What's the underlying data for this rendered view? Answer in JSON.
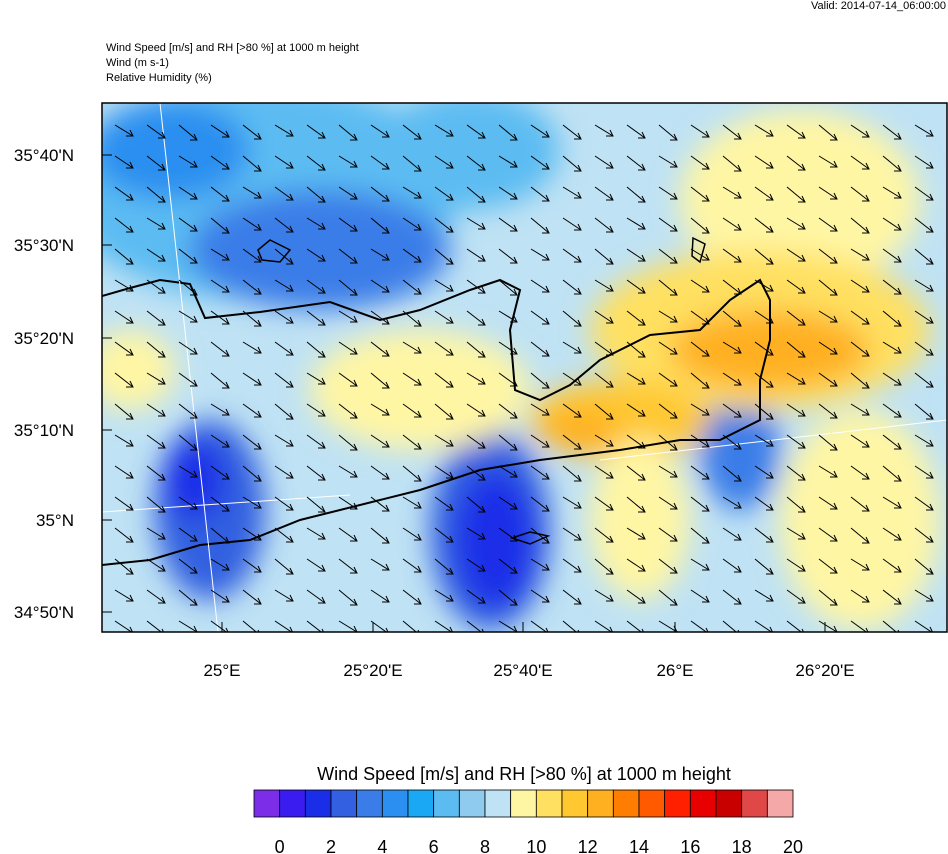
{
  "header": {
    "valid": "Valid: 2014-07-14_06:00:00",
    "lines": [
      "Wind Speed [m/s] and RH [>80 %] at 1000 m height",
      "Wind   (m s-1)",
      "Relative Humidity   (%)"
    ]
  },
  "map": {
    "lat_labels": [
      "35°40'N",
      "35°30'N",
      "35°20'N",
      "35°10'N",
      "35°N",
      "34°50'N"
    ],
    "lon_labels": [
      "25°E",
      "25°20'E",
      "25°40'E",
      "26°E",
      "26°20'E"
    ]
  },
  "colorbar": {
    "title": "Wind Speed [m/s] and RH [>80 %] at 1000 m height",
    "labels": [
      0,
      2,
      4,
      6,
      8,
      10,
      12,
      14,
      16,
      18,
      20
    ],
    "colors": [
      "#7b2de8",
      "#3a1cf0",
      "#1a2ee8",
      "#3360e0",
      "#3a7de8",
      "#2a8ff0",
      "#1aa8f5",
      "#5cbcf2",
      "#8ecbee",
      "#bfe2f4",
      "#fff6a4",
      "#ffe060",
      "#ffc830",
      "#ffb020",
      "#ff7d00",
      "#ff5a00",
      "#ff2000",
      "#e80000",
      "#c80000",
      "#e04848",
      "#f4a8a8"
    ]
  }
}
